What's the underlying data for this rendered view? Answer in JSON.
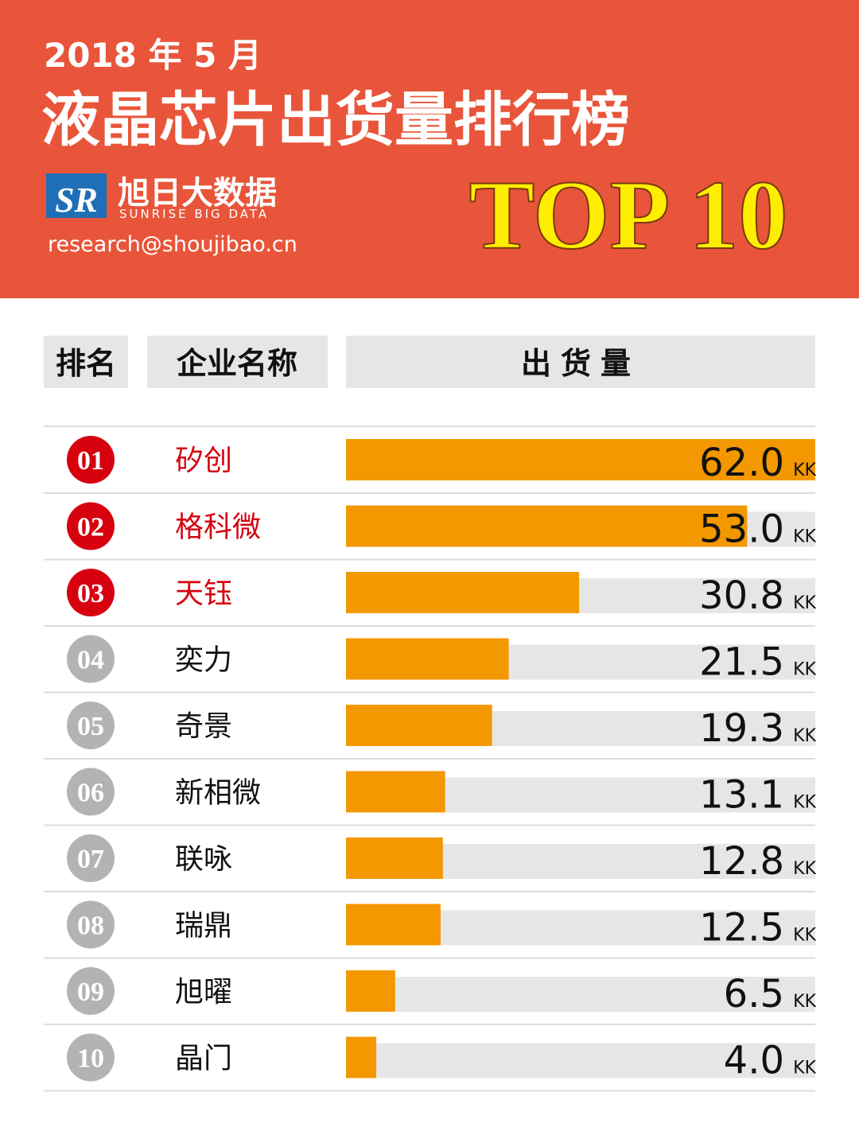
{
  "chart_data": {
    "type": "bar",
    "subtitle": "2018 年 5 月",
    "title": "液晶芯片出货量排行榜",
    "brand": "旭日大数据",
    "brand_en": "SUNRISE BIG DATA",
    "email": "research@shoujibao.cn",
    "badge": "TOP 10",
    "headers": [
      "排名",
      "企业名称",
      "出货量"
    ],
    "ranks": [
      "01",
      "02",
      "03",
      "04",
      "05",
      "06",
      "07",
      "08",
      "09",
      "10"
    ],
    "categories": [
      "矽创",
      "格科微",
      "天钰",
      "奕力",
      "奇景",
      "新相微",
      "联咏",
      "瑞鼎",
      "旭曜",
      "晶门"
    ],
    "values": [
      62.0,
      53.0,
      30.8,
      21.5,
      19.3,
      13.1,
      12.8,
      12.5,
      6.5,
      4.0
    ],
    "value_labels": [
      "62.0",
      "53.0",
      "30.8",
      "21.5",
      "19.3",
      "13.1",
      "12.8",
      "12.5",
      "6.5",
      "4.0"
    ],
    "unit": "KK",
    "color": "#f39800",
    "track_color": "#e6e6e6",
    "rank_colors": [
      "#d7000f",
      "#d7000f",
      "#d7000f",
      "#b3b3b3",
      "#b3b3b3",
      "#b3b3b3",
      "#b3b3b3",
      "#b3b3b3",
      "#b3b3b3",
      "#b3b3b3"
    ],
    "name_colors": [
      "#d7000f",
      "#d7000f",
      "#d7000f",
      "#111111",
      "#111111",
      "#111111",
      "#111111",
      "#111111",
      "#111111",
      "#111111"
    ],
    "xlim": [
      0,
      62
    ]
  }
}
